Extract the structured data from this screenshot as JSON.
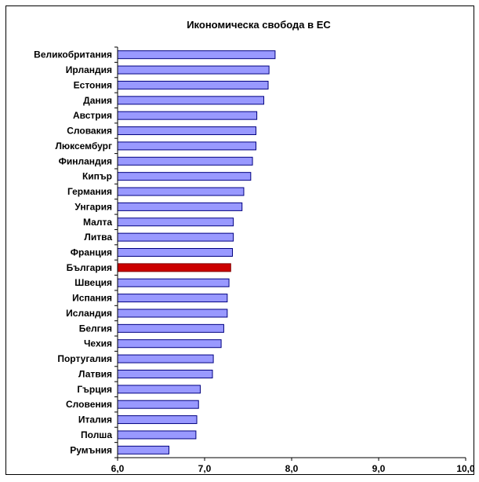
{
  "chart_data": {
    "type": "bar",
    "orientation": "horizontal",
    "title": "Икономическа свобода в ЕС",
    "xlabel": "",
    "ylabel": "",
    "categories": [
      "Великобритания",
      "Ирландия",
      "Естония",
      "Дания",
      "Австрия",
      "Словакия",
      "Люксембург",
      "Финландия",
      "Кипър",
      "Германия",
      "Унгария",
      "Малта",
      "Литва",
      "Франция",
      "България",
      "Швеция",
      "Испания",
      "Исландия",
      "Белгия",
      "Чехия",
      "Португалия",
      "Латвия",
      "Гърция",
      "Словения",
      "Италия",
      "Полша",
      "Румъния"
    ],
    "values": [
      7.81,
      7.74,
      7.73,
      7.68,
      7.6,
      7.59,
      7.59,
      7.55,
      7.53,
      7.45,
      7.43,
      7.33,
      7.33,
      7.32,
      7.3,
      7.28,
      7.26,
      7.26,
      7.22,
      7.19,
      7.1,
      7.09,
      6.95,
      6.93,
      6.91,
      6.9,
      6.59
    ],
    "highlight": "България",
    "xlim": [
      6.0,
      10.0
    ],
    "xticks": [
      "6,0",
      "7,0",
      "8,0",
      "9,0",
      "10,0"
    ],
    "grid": false,
    "legend": "none",
    "colors": {
      "bar_fill": "#9999ff",
      "bar_stroke": "#000080",
      "highlight_fill": "#cc0000",
      "highlight_stroke": "#800000"
    }
  }
}
